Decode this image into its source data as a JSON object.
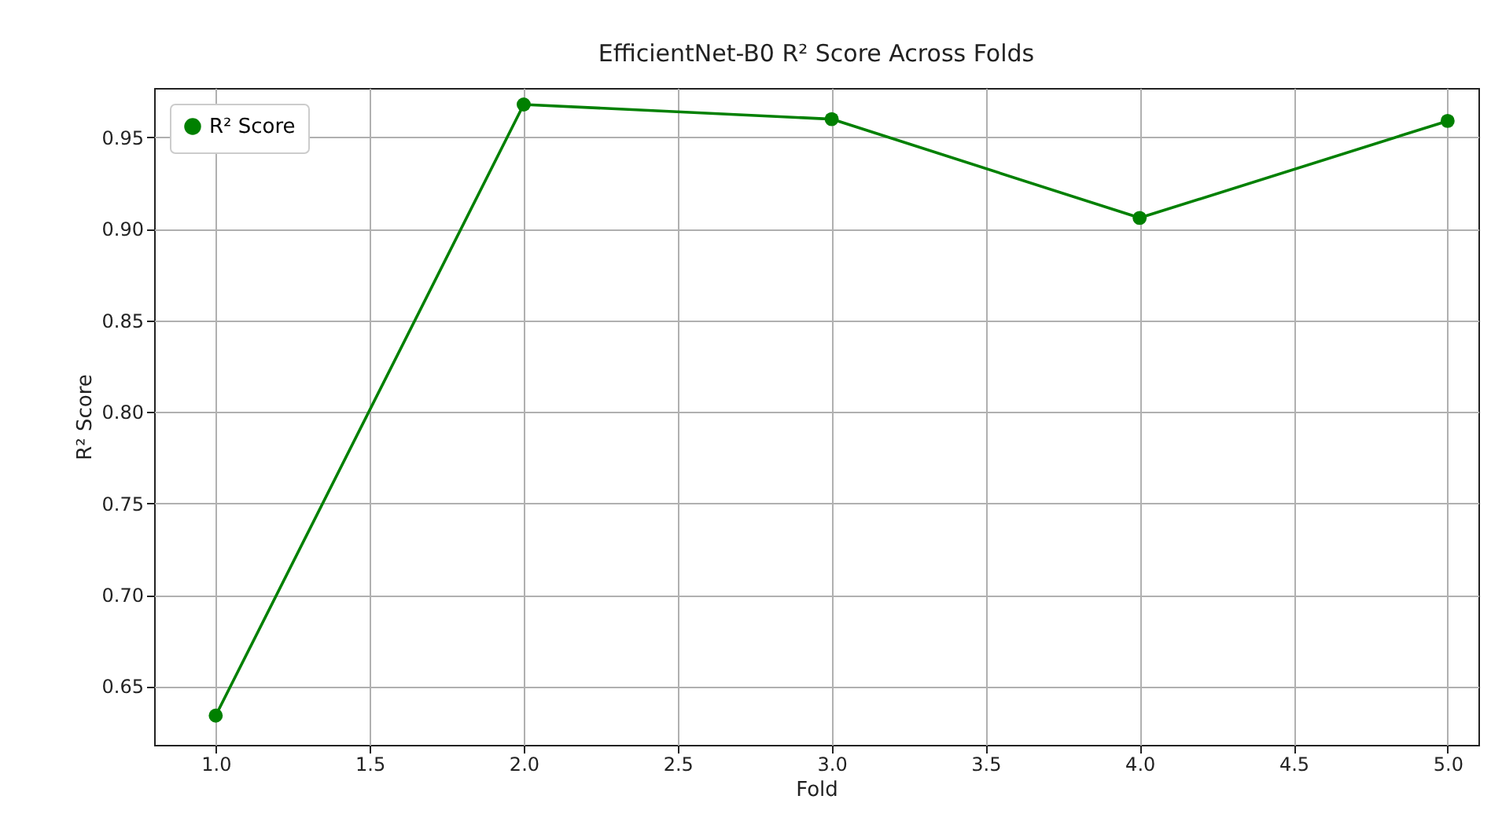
{
  "chart_data": {
    "type": "line",
    "title": "EfficientNet-B0 R² Score Across Folds",
    "xlabel": "Fold",
    "ylabel": "R² Score",
    "x": [
      1,
      2,
      3,
      4,
      5
    ],
    "series": [
      {
        "name": "R² Score",
        "color": "#008000",
        "values": [
          0.634,
          0.968,
          0.96,
          0.906,
          0.959
        ]
      }
    ],
    "xlim": [
      0.8,
      5.1
    ],
    "ylim": [
      0.618,
      0.977
    ],
    "xticks": [
      {
        "value": 1,
        "label": "1.0"
      },
      {
        "value": 1.5,
        "label": "1.5"
      },
      {
        "value": 2,
        "label": "2.0"
      },
      {
        "value": 2.5,
        "label": "2.5"
      },
      {
        "value": 3,
        "label": "3.0"
      },
      {
        "value": 3.5,
        "label": "3.5"
      },
      {
        "value": 4,
        "label": "4.0"
      },
      {
        "value": 4.5,
        "label": "4.5"
      },
      {
        "value": 5,
        "label": "5.0"
      }
    ],
    "yticks": [
      0.65,
      {
        "value": 0.7,
        "label": "0.70"
      },
      0.75,
      {
        "value": 0.8,
        "label": "0.80"
      },
      0.85,
      {
        "value": 0.9,
        "label": "0.90"
      },
      0.95
    ],
    "grid": true,
    "legend": "top left",
    "marker": "circle",
    "line_style": "solid"
  }
}
